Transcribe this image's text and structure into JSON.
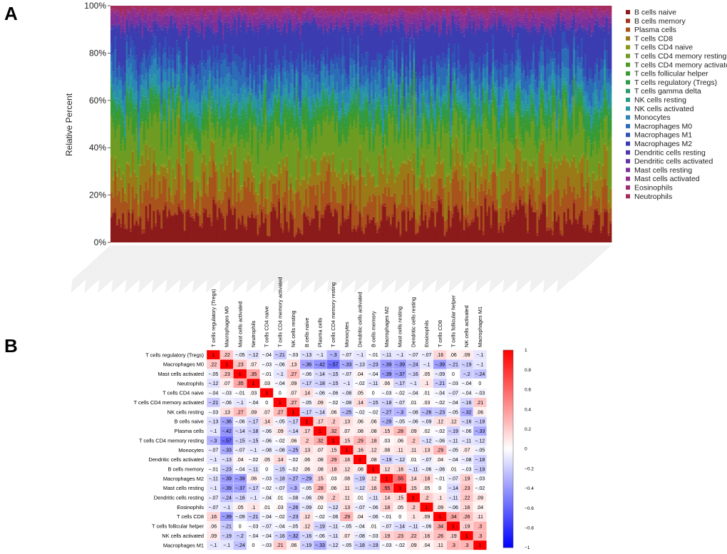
{
  "panels": {
    "a": "A",
    "b": "B"
  },
  "chart_data": [
    {
      "type": "bar",
      "stacked": true,
      "title": "",
      "xlabel": "",
      "ylabel": "Relative Percent",
      "yticks": [
        "0%",
        "20%",
        "40%",
        "60%",
        "80%",
        "100%"
      ],
      "ylim": [
        0,
        1
      ],
      "n_samples": 260,
      "legend_position": "right",
      "series": [
        {
          "name": "B cells naive",
          "color": "#8b1a1a",
          "mean": 0.1
        },
        {
          "name": "B cells memory",
          "color": "#a0361c",
          "mean": 0.01
        },
        {
          "name": "Plasma cells",
          "color": "#a8531c",
          "mean": 0.1
        },
        {
          "name": "T cells CD8",
          "color": "#9a7a16",
          "mean": 0.1
        },
        {
          "name": "T cells CD4 naive",
          "color": "#8a9a1a",
          "mean": 0.01
        },
        {
          "name": "T cells CD4 memory resting",
          "color": "#6e9b22",
          "mean": 0.15
        },
        {
          "name": "T cells CD4 memory activated",
          "color": "#4f9a26",
          "mean": 0.02
        },
        {
          "name": "T cells follicular helper",
          "color": "#3a9a30",
          "mean": 0.05
        },
        {
          "name": "T cells regulatory (Tregs)",
          "color": "#2e9a4a",
          "mean": 0.04
        },
        {
          "name": "T cells gamma delta",
          "color": "#2a9a6a",
          "mean": 0.01
        },
        {
          "name": "NK cells resting",
          "color": "#289a86",
          "mean": 0.02
        },
        {
          "name": "NK cells activated",
          "color": "#2a98a4",
          "mean": 0.03
        },
        {
          "name": "Monocytes",
          "color": "#2a86b4",
          "mean": 0.05
        },
        {
          "name": "Macrophages M0",
          "color": "#2c6cb6",
          "mean": 0.06
        },
        {
          "name": "Macrophages M1",
          "color": "#3052b4",
          "mean": 0.05
        },
        {
          "name": "Macrophages M2",
          "color": "#3a3cb0",
          "mean": 0.12
        },
        {
          "name": "Dendritic cells resting",
          "color": "#4e36aa",
          "mean": 0.01
        },
        {
          "name": "Dendritic cells activated",
          "color": "#6634a4",
          "mean": 0.01
        },
        {
          "name": "Mast cells resting",
          "color": "#7e309a",
          "mean": 0.03
        },
        {
          "name": "Mast cells activated",
          "color": "#92308e",
          "mean": 0.02
        },
        {
          "name": "Eosinophils",
          "color": "#9e2e78",
          "mean": 0.01
        },
        {
          "name": "Neutrophils",
          "color": "#a42c5e",
          "mean": 0.02
        }
      ]
    },
    {
      "type": "heatmap",
      "title": "",
      "labels": [
        "T cells regulatory (Tregs)",
        "Macrophages M0",
        "Mast cells activated",
        "Neutrophils",
        "T cells CD4 naive",
        "T cells CD4 memory activated",
        "NK cells resting",
        "B cells naive",
        "Plasma cells",
        "T cells CD4 memory resting",
        "Monocytes",
        "Dendritic cells activated",
        "B cells memory",
        "Macrophages M2",
        "Mast cells resting",
        "Dendritic cells resting",
        "Eosinophils",
        "T cells CD8",
        "T cells follicular helper",
        "NK cells activated",
        "Macrophages M1"
      ],
      "colorbar_ticks": [
        "1",
        "0.8",
        "0.6",
        "0.4",
        "0.2",
        "0",
        "−0.2",
        "−0.4",
        "−0.6",
        "−0.8",
        "−1"
      ],
      "colorbar_range": [
        -1,
        1
      ],
      "values": [
        [
          1,
          0.22,
          -0.05,
          -0.12,
          -0.04,
          -0.21,
          -0.03,
          -0.13,
          -0.1,
          -0.3,
          -0.07,
          -0.1,
          -0.01,
          -0.11,
          -0.1,
          -0.07,
          -0.07,
          0.16,
          0.06,
          0.09,
          -0.1
        ],
        [
          0.22,
          1,
          0.23,
          0.07,
          -0.03,
          -0.06,
          0.13,
          -0.36,
          -0.42,
          -0.57,
          -0.33,
          -0.13,
          -0.23,
          -0.39,
          -0.39,
          -0.24,
          -0.1,
          -0.39,
          -0.21,
          -0.19,
          -0.1
        ],
        [
          -0.05,
          0.23,
          1,
          0.35,
          -0.01,
          -0.1,
          0.27,
          -0.06,
          -0.14,
          -0.15,
          -0.07,
          0.04,
          -0.04,
          -0.39,
          -0.37,
          -0.16,
          0.05,
          -0.09,
          0,
          -0.2,
          -0.24
        ],
        [
          -0.12,
          0.07,
          0.35,
          1,
          0.03,
          -0.04,
          0.09,
          -0.17,
          -0.18,
          -0.15,
          -0.1,
          -0.02,
          -0.11,
          0.06,
          -0.17,
          -0.1,
          0.1,
          -0.21,
          -0.03,
          -0.04,
          0
        ],
        [
          -0.04,
          -0.03,
          -0.01,
          0.03,
          1,
          0,
          0.07,
          0.14,
          -0.06,
          -0.06,
          -0.08,
          0.05,
          0,
          -0.03,
          -0.02,
          -0.04,
          0.01,
          -0.04,
          -0.07,
          -0.04,
          -0.03
        ],
        [
          -0.21,
          -0.06,
          -0.1,
          -0.04,
          0,
          1,
          0.27,
          -0.05,
          0.09,
          -0.02,
          -0.08,
          0.14,
          -0.15,
          -0.18,
          -0.07,
          0.01,
          0.03,
          -0.02,
          -0.04,
          -0.16,
          0.21
        ],
        [
          -0.03,
          0.13,
          0.27,
          0.09,
          0.07,
          0.27,
          1,
          -0.17,
          -0.14,
          0.06,
          -0.25,
          -0.02,
          -0.02,
          -0.27,
          -0.3,
          -0.08,
          -0.26,
          -0.23,
          -0.05,
          -0.32,
          0.06
        ],
        [
          -0.13,
          -0.36,
          -0.06,
          -0.17,
          0.14,
          -0.05,
          -0.17,
          1,
          0.17,
          0.2,
          0.13,
          0.06,
          0.06,
          -0.29,
          -0.05,
          -0.06,
          -0.09,
          0.12,
          0.12,
          -0.16,
          -0.19
        ],
        [
          -0.1,
          -0.42,
          -0.14,
          -0.18,
          -0.06,
          0.09,
          -0.14,
          0.17,
          1,
          0.32,
          0.07,
          0.08,
          0.08,
          0.15,
          0.28,
          0.09,
          0.02,
          -0.02,
          -0.19,
          -0.06,
          -0.33
        ],
        [
          -0.3,
          -0.57,
          -0.15,
          -0.15,
          -0.06,
          -0.02,
          0.06,
          0.2,
          0.32,
          1,
          0.15,
          0.29,
          0.18,
          0.03,
          0.06,
          0.2,
          -0.12,
          -0.06,
          -0.11,
          -0.11,
          -0.12
        ],
        [
          -0.07,
          -0.33,
          -0.07,
          -0.1,
          -0.08,
          -0.08,
          -0.25,
          0.13,
          0.07,
          0.15,
          1,
          0.16,
          0.12,
          0.08,
          0.11,
          0.11,
          0.13,
          0.29,
          -0.05,
          0.07,
          -0.05
        ],
        [
          -0.1,
          -0.13,
          0.04,
          -0.02,
          0.05,
          0.14,
          -0.02,
          0.06,
          0.08,
          0.29,
          0.16,
          1,
          0.08,
          -0.19,
          -0.12,
          0.01,
          -0.07,
          0.04,
          -0.04,
          -0.08,
          -0.18
        ],
        [
          -0.01,
          -0.23,
          -0.04,
          -0.11,
          0,
          -0.15,
          -0.02,
          0.06,
          0.08,
          0.18,
          0.12,
          0.08,
          1,
          0.12,
          0.16,
          -0.11,
          -0.06,
          -0.06,
          0.01,
          -0.03,
          -0.19
        ],
        [
          -0.11,
          -0.39,
          -0.39,
          0.06,
          -0.03,
          -0.18,
          -0.27,
          -0.29,
          0.15,
          0.03,
          0.08,
          -0.19,
          0.12,
          1,
          0.55,
          0.14,
          0.18,
          -0.01,
          -0.07,
          0.19,
          -0.03
        ],
        [
          -0.1,
          -0.39,
          -0.37,
          -0.17,
          -0.02,
          -0.07,
          -0.3,
          -0.05,
          0.28,
          0.06,
          0.11,
          -0.12,
          0.16,
          0.55,
          1,
          0.15,
          0.05,
          0,
          -0.14,
          0.23,
          -0.02
        ],
        [
          -0.07,
          -0.24,
          -0.16,
          -0.1,
          -0.04,
          0.01,
          -0.08,
          -0.06,
          0.09,
          0.2,
          0.11,
          0.01,
          -0.11,
          0.14,
          0.15,
          1,
          0.2,
          0.1,
          -0.11,
          0.22,
          0.09
        ],
        [
          -0.07,
          -0.1,
          0.05,
          0.1,
          0.01,
          0.03,
          -0.26,
          -0.09,
          0.02,
          -0.12,
          0.13,
          -0.07,
          -0.06,
          0.18,
          0.05,
          0.2,
          1,
          0.09,
          -0.06,
          0.16,
          0.04
        ],
        [
          0.16,
          -0.39,
          -0.09,
          -0.21,
          -0.04,
          -0.02,
          -0.23,
          0.12,
          -0.02,
          -0.06,
          0.29,
          0.04,
          -0.06,
          -0.01,
          0,
          0.1,
          0.09,
          1,
          0.34,
          0.26,
          0.11
        ],
        [
          0.06,
          -0.21,
          0,
          -0.03,
          -0.07,
          -0.04,
          -0.05,
          0.12,
          -0.19,
          -0.11,
          -0.05,
          -0.04,
          0.01,
          -0.07,
          -0.14,
          -0.11,
          -0.06,
          0.34,
          1,
          0.19,
          0.3
        ],
        [
          0.09,
          -0.19,
          -0.2,
          -0.04,
          -0.04,
          -0.16,
          -0.32,
          -0.16,
          -0.06,
          -0.11,
          0.07,
          -0.08,
          -0.03,
          0.19,
          0.23,
          0.22,
          0.16,
          0.26,
          0.19,
          1,
          0.3
        ],
        [
          -0.1,
          -0.1,
          -0.24,
          0,
          -0.03,
          0.21,
          0.06,
          -0.19,
          -0.33,
          -0.12,
          -0.05,
          -0.18,
          -0.19,
          -0.03,
          -0.02,
          0.09,
          0.04,
          0.11,
          0.3,
          0.3,
          1
        ]
      ]
    }
  ]
}
